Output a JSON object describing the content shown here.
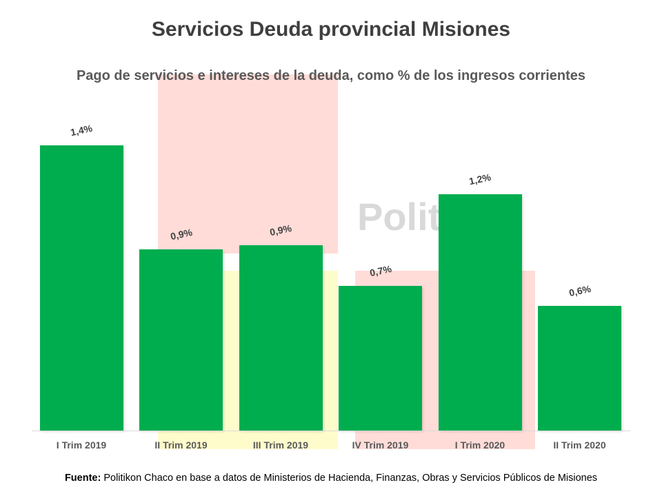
{
  "watermark": {
    "text": "Politikon",
    "colors": {
      "pink": "#ffdcd8",
      "yellow": "#fffccc",
      "text": "#d9d9d9"
    }
  },
  "chart_data": {
    "type": "bar",
    "title": "Servicios Deuda provincial Misiones",
    "subtitle": "Pago de servicios e intereses de la deuda, como % de los ingresos corrientes",
    "categories": [
      "I Trim 2019",
      "II Trim 2019",
      "III Trim 2019",
      "IV Trim 2019",
      "I Trim 2020",
      "II Trim 2020"
    ],
    "values": [
      1.4,
      0.89,
      0.91,
      0.71,
      1.16,
      0.61
    ],
    "data_labels": [
      "1,4%",
      "0,9%",
      "0,9%",
      "0,7%",
      "1,2%",
      "0,6%"
    ],
    "xlabel": "",
    "ylabel": "",
    "ylim": [
      0,
      1.45
    ],
    "grid": false,
    "legend": "none",
    "bar_color": "#00ad4e"
  },
  "source": {
    "label": "Fuente:",
    "text": " Politikon Chaco en base a datos de Ministerios de Hacienda, Finanzas, Obras y Servicios Públicos de Misiones"
  }
}
